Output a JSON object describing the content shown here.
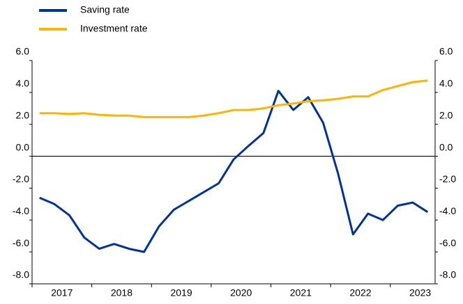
{
  "chart_data": {
    "type": "line",
    "categories": [
      null,
      "2017",
      null,
      null,
      null,
      "2018",
      null,
      null,
      null,
      "2019",
      null,
      null,
      null,
      "2020",
      null,
      null,
      null,
      "2021",
      null,
      null,
      null,
      "2022",
      null,
      null,
      null,
      "2023",
      null
    ],
    "series": [
      {
        "name": "Saving rate",
        "color": "#003399",
        "values": [
          -2.6,
          -3.0,
          -3.7,
          -5.1,
          -5.8,
          -5.5,
          -5.8,
          -6.0,
          -4.4,
          -3.35,
          -2.8,
          -2.25,
          -1.7,
          -0.2,
          0.65,
          1.45,
          4.1,
          2.9,
          3.7,
          2.1,
          -1.1,
          -4.9,
          -3.6,
          -4.0,
          -3.1,
          -2.9,
          -3.5
        ]
      },
      {
        "name": "Investment rate",
        "color": "#ffb400",
        "values": [
          2.7,
          2.7,
          2.65,
          2.7,
          2.6,
          2.55,
          2.55,
          2.45,
          2.45,
          2.45,
          2.45,
          2.55,
          2.7,
          2.9,
          2.9,
          3.0,
          3.2,
          3.3,
          3.45,
          3.5,
          3.6,
          3.75,
          3.75,
          4.15,
          4.4,
          4.65,
          4.75
        ]
      }
    ],
    "ylim": [
      -8,
      6
    ],
    "yticks": [
      {
        "value": -8,
        "label": "-8.0"
      },
      {
        "value": -6,
        "label": "-6.0"
      },
      {
        "value": -4,
        "label": "-4.0"
      },
      {
        "value": -2,
        "label": "-2.0"
      },
      {
        "value": 0,
        "label": "0.0"
      },
      {
        "value": 2,
        "label": "2.0"
      },
      {
        "value": 4,
        "label": "4.0"
      },
      {
        "value": 6,
        "label": "6.0"
      }
    ],
    "y2lim": [
      -8,
      6
    ],
    "y2ticks": [
      {
        "value": -8,
        "label": "-8.0"
      },
      {
        "value": -6,
        "label": "-6.0"
      },
      {
        "value": -4,
        "label": "-4.0"
      },
      {
        "value": -2,
        "label": "-2.0"
      },
      {
        "value": 0,
        "label": "0.0"
      },
      {
        "value": 2,
        "label": "2.0"
      },
      {
        "value": 4,
        "label": "4.0"
      },
      {
        "value": 6,
        "label": "6.0"
      }
    ],
    "grid": false,
    "legend": "top-left"
  }
}
